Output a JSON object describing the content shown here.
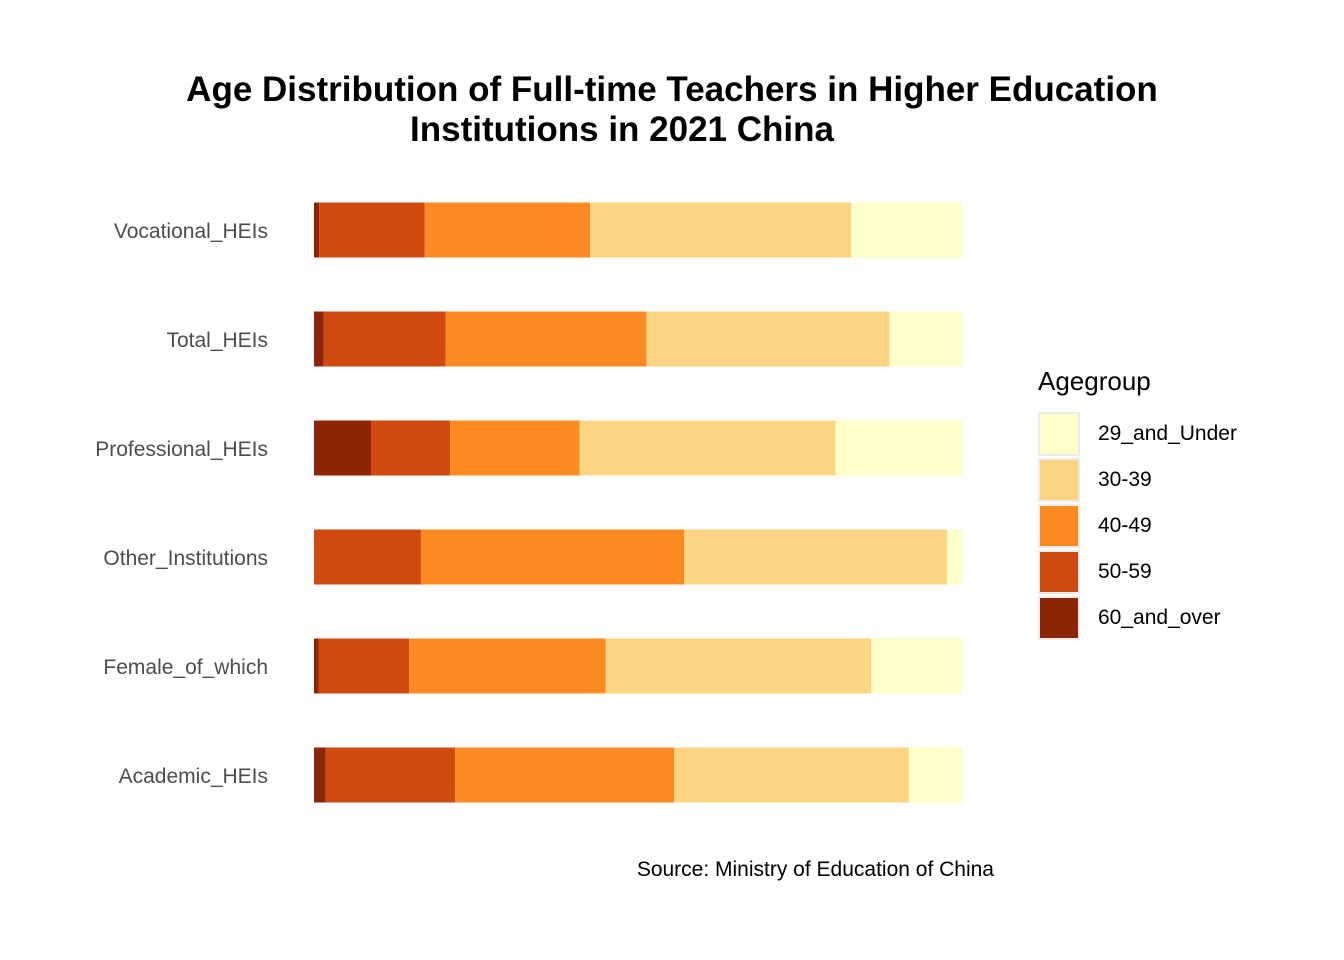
{
  "chart_data": {
    "type": "bar",
    "orientation": "horizontal",
    "stacked": "percent",
    "title": "Age Distribution of Full-time Teachers in Higher Education Institutions in 2021 China",
    "title_lines": [
      "Age Distribution of Full-time Teachers in Higher Education",
      "Institutions in 2021 China"
    ],
    "caption": "Source: Ministry of Education of China",
    "xlabel": "",
    "ylabel": "",
    "categories": [
      "Vocational_HEIs",
      "Total_HEIs",
      "Professional_HEIs",
      "Other_Institutions",
      "Female_of_which",
      "Academic_HEIs"
    ],
    "series": [
      {
        "name": "60_and_over",
        "color": "#8B2506",
        "values": [
          0.8,
          1.5,
          8.8,
          0.0,
          0.7,
          1.8
        ]
      },
      {
        "name": "50-59",
        "color": "#D04A10",
        "values": [
          16.3,
          18.8,
          12.2,
          16.5,
          14.0,
          20.0
        ]
      },
      {
        "name": "40-49",
        "color": "#FB8A22",
        "values": [
          25.5,
          31.0,
          20.0,
          40.6,
          30.3,
          33.8
        ]
      },
      {
        "name": "30-39",
        "color": "#FDD481",
        "values": [
          40.3,
          37.5,
          39.5,
          40.6,
          41.0,
          36.2
        ]
      },
      {
        "name": "29_and_Under",
        "color": "#FFFFCC",
        "values": [
          17.1,
          11.2,
          19.5,
          2.3,
          14.0,
          8.2
        ]
      }
    ],
    "xlim": [
      0,
      100
    ],
    "grid": false,
    "legend": {
      "title": "Agegroup",
      "position": "right",
      "order": [
        "29_and_Under",
        "30-39",
        "40-49",
        "50-59",
        "60_and_over"
      ]
    }
  }
}
